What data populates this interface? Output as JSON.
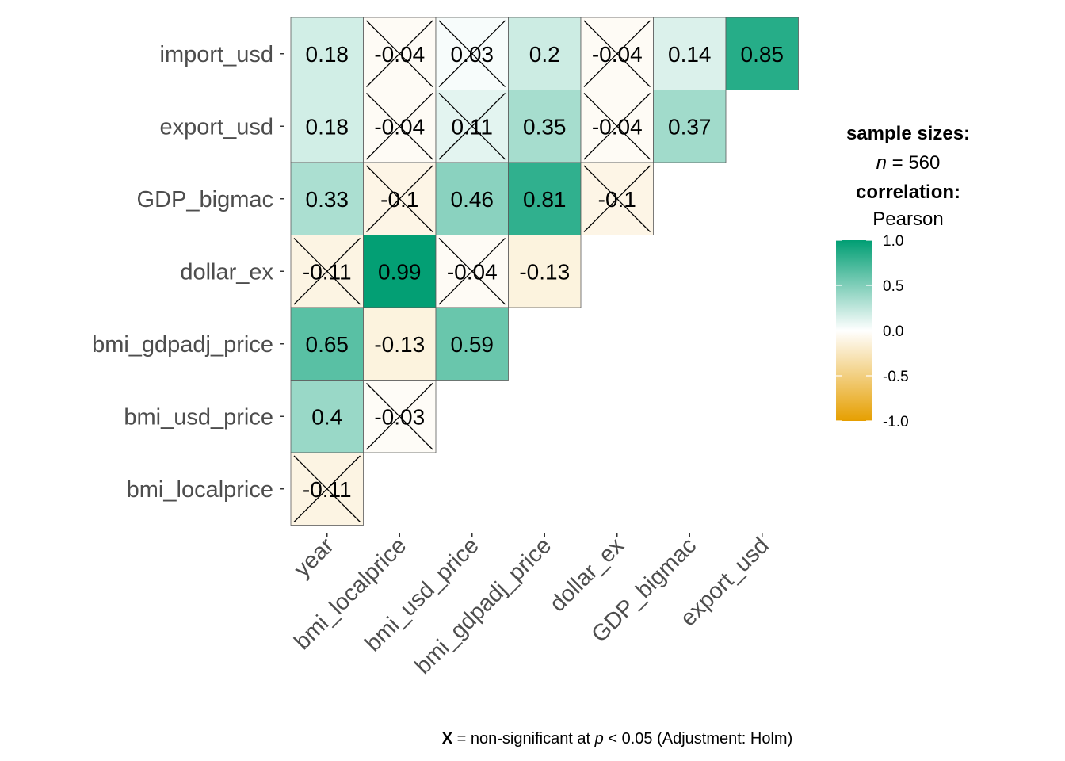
{
  "chart_data": {
    "type": "heatmap",
    "layout": "lower-triangle correlation matrix",
    "x_categories": [
      "year",
      "bmi_localprice",
      "bmi_usd_price",
      "bmi_gdpadj_price",
      "dollar_ex",
      "GDP_bigmac",
      "export_usd"
    ],
    "y_categories": [
      "import_usd",
      "export_usd",
      "GDP_bigmac",
      "dollar_ex",
      "bmi_gdpadj_price",
      "bmi_usd_price",
      "bmi_localprice"
    ],
    "cells": [
      {
        "x": "year",
        "y": "import_usd",
        "value": 0.18,
        "label": "0.18",
        "nonsig": false
      },
      {
        "x": "bmi_localprice",
        "y": "import_usd",
        "value": -0.04,
        "label": "-0.04",
        "nonsig": true
      },
      {
        "x": "bmi_usd_price",
        "y": "import_usd",
        "value": 0.03,
        "label": "0.03",
        "nonsig": true
      },
      {
        "x": "bmi_gdpadj_price",
        "y": "import_usd",
        "value": 0.2,
        "label": "0.2",
        "nonsig": false
      },
      {
        "x": "dollar_ex",
        "y": "import_usd",
        "value": -0.04,
        "label": "-0.04",
        "nonsig": true
      },
      {
        "x": "GDP_bigmac",
        "y": "import_usd",
        "value": 0.14,
        "label": "0.14",
        "nonsig": false
      },
      {
        "x": "export_usd",
        "y": "import_usd",
        "value": 0.85,
        "label": "0.85",
        "nonsig": false
      },
      {
        "x": "year",
        "y": "export_usd",
        "value": 0.18,
        "label": "0.18",
        "nonsig": false
      },
      {
        "x": "bmi_localprice",
        "y": "export_usd",
        "value": -0.04,
        "label": "-0.04",
        "nonsig": true
      },
      {
        "x": "bmi_usd_price",
        "y": "export_usd",
        "value": 0.11,
        "label": "0.11",
        "nonsig": true
      },
      {
        "x": "bmi_gdpadj_price",
        "y": "export_usd",
        "value": 0.35,
        "label": "0.35",
        "nonsig": false
      },
      {
        "x": "dollar_ex",
        "y": "export_usd",
        "value": -0.04,
        "label": "-0.04",
        "nonsig": true
      },
      {
        "x": "GDP_bigmac",
        "y": "export_usd",
        "value": 0.37,
        "label": "0.37",
        "nonsig": false
      },
      {
        "x": "year",
        "y": "GDP_bigmac",
        "value": 0.33,
        "label": "0.33",
        "nonsig": false
      },
      {
        "x": "bmi_localprice",
        "y": "GDP_bigmac",
        "value": -0.1,
        "label": "-0.1",
        "nonsig": true
      },
      {
        "x": "bmi_usd_price",
        "y": "GDP_bigmac",
        "value": 0.46,
        "label": "0.46",
        "nonsig": false
      },
      {
        "x": "bmi_gdpadj_price",
        "y": "GDP_bigmac",
        "value": 0.81,
        "label": "0.81",
        "nonsig": false
      },
      {
        "x": "dollar_ex",
        "y": "GDP_bigmac",
        "value": -0.1,
        "label": "-0.1",
        "nonsig": true
      },
      {
        "x": "year",
        "y": "dollar_ex",
        "value": -0.11,
        "label": "-0.11",
        "nonsig": true
      },
      {
        "x": "bmi_localprice",
        "y": "dollar_ex",
        "value": 0.99,
        "label": "0.99",
        "nonsig": false
      },
      {
        "x": "bmi_usd_price",
        "y": "dollar_ex",
        "value": -0.04,
        "label": "-0.04",
        "nonsig": true
      },
      {
        "x": "bmi_gdpadj_price",
        "y": "dollar_ex",
        "value": -0.13,
        "label": "-0.13",
        "nonsig": false
      },
      {
        "x": "year",
        "y": "bmi_gdpadj_price",
        "value": 0.65,
        "label": "0.65",
        "nonsig": false
      },
      {
        "x": "bmi_localprice",
        "y": "bmi_gdpadj_price",
        "value": -0.13,
        "label": "-0.13",
        "nonsig": false
      },
      {
        "x": "bmi_usd_price",
        "y": "bmi_gdpadj_price",
        "value": 0.59,
        "label": "0.59",
        "nonsig": false
      },
      {
        "x": "year",
        "y": "bmi_usd_price",
        "value": 0.4,
        "label": "0.4",
        "nonsig": false
      },
      {
        "x": "bmi_localprice",
        "y": "bmi_usd_price",
        "value": -0.03,
        "label": "-0.03",
        "nonsig": true
      },
      {
        "x": "year",
        "y": "bmi_localprice",
        "value": -0.11,
        "label": "-0.11",
        "nonsig": true
      }
    ],
    "color_scale": {
      "min": -1,
      "max": 1,
      "low_color": "#E69F00",
      "mid_color": "#FFFFFF",
      "high_color": "#009E73"
    },
    "legend": {
      "sample_sizes_title": "sample sizes:",
      "n_symbol": "n",
      "n_text": " = 560",
      "correlation_title": "correlation:",
      "method": "Pearson",
      "ticks": [
        "1.0",
        "0.5",
        "0.0",
        "-0.5",
        "-1.0"
      ],
      "placement": "right"
    },
    "caption": {
      "mark": "X",
      "text1": " = non-significant at ",
      "p_symbol": "p",
      "text2": " < 0.05 (Adjustment: Holm)"
    }
  }
}
